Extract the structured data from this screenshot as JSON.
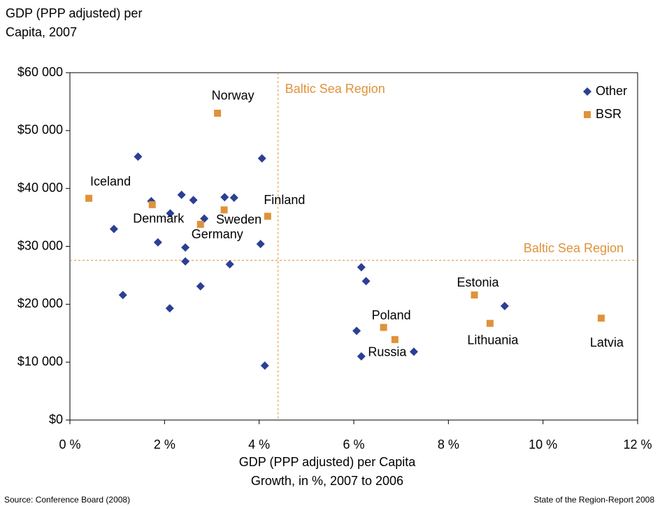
{
  "chart_data": {
    "type": "scatter",
    "title": "GDP (PPP adjusted) per Capita, 2007",
    "x_label": "GDP (PPP adjusted) per Capita Growth, in %, 2007 to 2006",
    "source": "Source: Conference Board (2008)",
    "footer": "State of the Region-Report 2008",
    "xlim": [
      0,
      12
    ],
    "xticks": [
      {
        "value": 0,
        "label": "0 %"
      },
      {
        "value": 2,
        "label": "2 %"
      },
      {
        "value": 4,
        "label": "4 %"
      },
      {
        "value": 6,
        "label": "6 %"
      },
      {
        "value": 8,
        "label": "8 %"
      },
      {
        "value": 10,
        "label": "10 %"
      },
      {
        "value": 12,
        "label": "12 %"
      }
    ],
    "ylim": [
      0,
      60000
    ],
    "yticks": [
      {
        "value": 0,
        "label": "$0"
      },
      {
        "value": 10000,
        "label": "$10 000"
      },
      {
        "value": 20000,
        "label": "$20 000"
      },
      {
        "value": 30000,
        "label": "$30 000"
      },
      {
        "value": 40000,
        "label": "$40 000"
      },
      {
        "value": 50000,
        "label": "$50 000"
      },
      {
        "value": 60000,
        "label": "$60 000"
      }
    ],
    "legend": "upper right",
    "reference_lines": [
      {
        "axis": "x",
        "value": 4.4,
        "label": "Baltic Sea Region",
        "color": "#e0923a"
      },
      {
        "axis": "y",
        "value": 27600,
        "label": "Baltic Sea Region",
        "color": "#e0923a"
      }
    ],
    "series": [
      {
        "name": "Other",
        "color": "#2b3f94",
        "marker": "diamond",
        "x": [
          1.44,
          4.06,
          1.72,
          2.36,
          2.61,
          3.27,
          3.47,
          2.12,
          2.84,
          0.93,
          1.86,
          2.44,
          4.03,
          2.44,
          3.38,
          1.12,
          2.76,
          2.11,
          4.12,
          6.16,
          6.26,
          6.06,
          6.16,
          7.27,
          9.19
        ],
        "values": [
          45500,
          45200,
          37800,
          38900,
          38000,
          38500,
          38400,
          35700,
          34800,
          33000,
          30700,
          29800,
          30400,
          27400,
          26900,
          21600,
          23100,
          19300,
          9400,
          26400,
          24000,
          15400,
          11000,
          11800,
          19700
        ]
      },
      {
        "name": "BSR",
        "color": "#e0923a",
        "marker": "square",
        "x": [
          0.4,
          3.12,
          1.74,
          2.76,
          3.26,
          4.18,
          8.55,
          8.88,
          6.63,
          6.87,
          11.23
        ],
        "values": [
          38300,
          53000,
          37200,
          33800,
          36300,
          35200,
          21600,
          16700,
          16000,
          13900,
          17600
        ],
        "labels": [
          "Iceland",
          "Norway",
          "Denmark",
          "Germany",
          "Sweden",
          "Finland",
          "Estonia",
          "Lithuania",
          "Poland",
          "Russia",
          "Latvia"
        ]
      }
    ]
  }
}
